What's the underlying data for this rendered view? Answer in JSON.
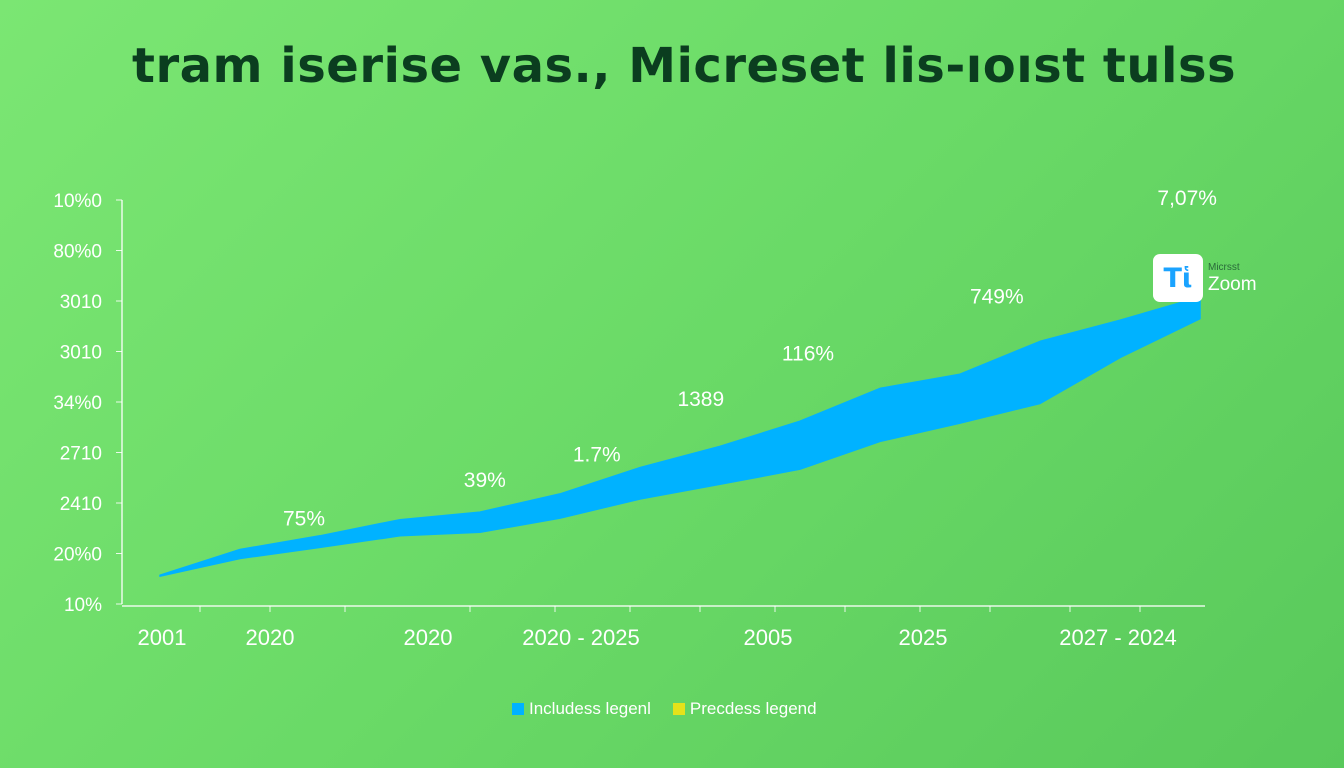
{
  "chart_data": {
    "type": "area",
    "title": "tram iserise vas., Micreset lis-ıoıst tulss",
    "xlabel": "",
    "ylabel": "",
    "y_tick_labels": [
      "10%",
      "20%0",
      "2410",
      "2710",
      "34%0",
      "3010",
      "3010",
      "80%0",
      "10%0"
    ],
    "x_tick_labels": [
      "2001",
      "2020",
      "2020",
      "2020 - 2025",
      "2005",
      "2025",
      "2027 - 2024"
    ],
    "x_tick_positions": [
      0,
      1,
      2,
      3,
      4,
      5,
      6
    ],
    "ylim": [
      0,
      8
    ],
    "grid": false,
    "legend_position": "bottom-center",
    "series": [
      {
        "name": "Includess legenl",
        "color": "#00b2ff",
        "x": [
          0,
          0.5,
          1.0,
          1.5,
          2.0,
          2.5,
          3.0,
          3.5,
          4.0,
          4.5,
          5.0,
          5.5,
          6.0,
          6.5
        ],
        "upper": [
          0.57,
          1.08,
          1.35,
          1.67,
          1.82,
          2.18,
          2.7,
          3.12,
          3.62,
          4.27,
          4.55,
          5.2,
          5.62,
          6.08
        ],
        "lower": [
          0.55,
          0.9,
          1.12,
          1.35,
          1.42,
          1.7,
          2.08,
          2.37,
          2.67,
          3.22,
          3.58,
          3.97,
          4.88,
          5.65
        ]
      }
    ],
    "legend": [
      {
        "name": "Includess legenl",
        "color": "#00b2ff"
      },
      {
        "name": "Precdess legend",
        "color": "#e5e21a"
      }
    ],
    "data_labels": [
      {
        "text": "75%",
        "x": 0.9,
        "y": 1.55
      },
      {
        "text": "39%",
        "x": 2.03,
        "y": 2.32
      },
      {
        "text": "1.7%",
        "x": 2.73,
        "y": 2.82
      },
      {
        "text": "1389",
        "x": 3.38,
        "y": 3.92
      },
      {
        "text": "116%",
        "x": 4.05,
        "y": 4.82
      },
      {
        "text": "749%",
        "x": 5.23,
        "y": 5.95
      },
      {
        "text": "7,07%",
        "x": 6.42,
        "y": 7.9
      }
    ]
  },
  "brand": {
    "icon_text": "Tἱ",
    "sub_text": "Micrsst",
    "name": "Zoom"
  }
}
